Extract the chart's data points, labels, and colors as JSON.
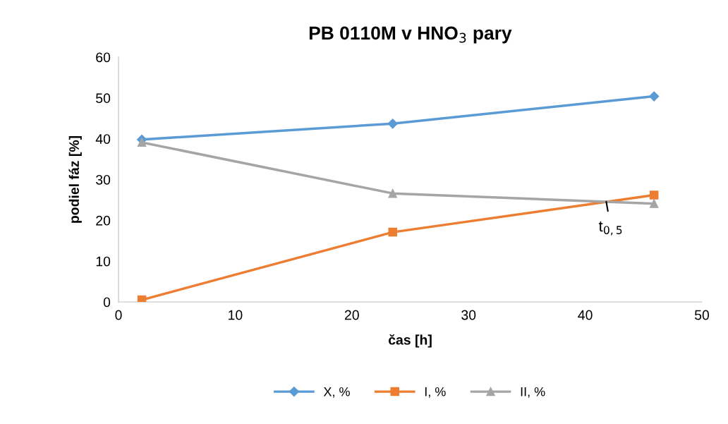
{
  "chart_data": {
    "type": "line",
    "title": "PB 0110M v HNO$_{3}$ pary",
    "xlabel": "čas [h]",
    "ylabel": "podiel fáz [%]",
    "xlim": [
      0,
      50
    ],
    "xticks": [
      0,
      10,
      20,
      30,
      40,
      50
    ],
    "ylim": [
      0,
      60
    ],
    "yticks": [
      0,
      10,
      20,
      30,
      40,
      50,
      60
    ],
    "grid": false,
    "legend": "bottom",
    "series": [
      {
        "name": "X, %",
        "color": "#5b9bd5",
        "marker": "diamond",
        "x": [
          2.0,
          23.5,
          45.9
        ],
        "values": [
          39.8,
          43.7,
          50.4
        ]
      },
      {
        "name": "I, %",
        "color": "#ed7d31",
        "marker": "square",
        "x": [
          2.0,
          23.5,
          45.9
        ],
        "values": [
          0.5,
          17.1,
          26.2
        ]
      },
      {
        "name": "II, %",
        "color": "#a5a5a5",
        "marker": "triangle",
        "x": [
          2.0,
          23.5,
          45.9
        ],
        "values": [
          39.1,
          26.6,
          24.1
        ]
      }
    ],
    "annotations": [
      {
        "text": "t$_{0,5}$",
        "x": 41.8,
        "y": 24.6
      }
    ]
  }
}
